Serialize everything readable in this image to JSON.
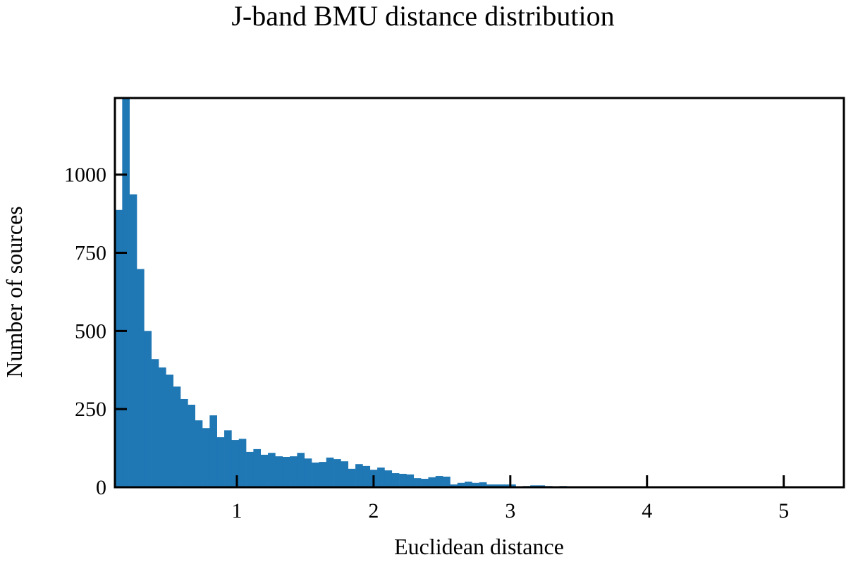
{
  "chart_data": {
    "type": "bar",
    "title": "J-band BMU distance distribution",
    "xlabel": "Euclidean distance",
    "ylabel": "Number of sources",
    "xlim": [
      0.108,
      5.44
    ],
    "ylim": [
      0,
      1245
    ],
    "xticks": [
      1,
      2,
      3,
      4,
      5
    ],
    "yticks": [
      0,
      250,
      500,
      750,
      1000
    ],
    "grid": false,
    "legend": null,
    "color": "#1f77b4",
    "bin_start": 0.108,
    "bin_width": 0.0533,
    "values": [
      887,
      1300,
      937,
      698,
      500,
      410,
      383,
      360,
      322,
      282,
      264,
      214,
      189,
      230,
      160,
      182,
      151,
      155,
      113,
      122,
      104,
      110,
      99,
      97,
      99,
      110,
      92,
      79,
      81,
      95,
      90,
      83,
      59,
      74,
      68,
      56,
      63,
      54,
      45,
      43,
      41,
      29,
      27,
      32,
      36,
      34,
      9,
      14,
      18,
      14,
      16,
      9,
      9,
      9,
      9,
      1,
      4,
      6,
      6,
      4,
      3,
      4,
      2,
      1,
      0,
      0,
      0,
      0,
      0,
      0,
      0,
      0,
      0,
      0,
      0,
      0,
      0,
      0,
      0,
      0,
      0,
      0,
      0,
      0,
      0,
      0,
      0,
      0,
      0,
      0,
      0,
      0,
      0,
      0,
      0,
      0,
      0,
      0,
      0,
      1
    ]
  }
}
